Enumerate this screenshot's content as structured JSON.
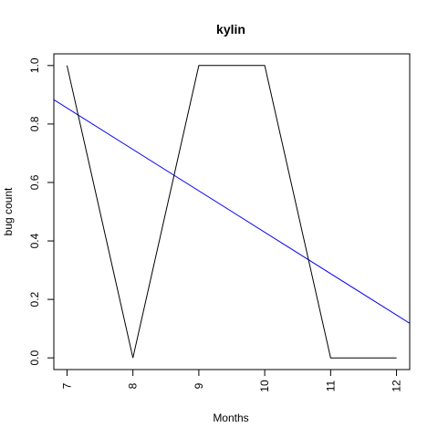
{
  "chart_data": {
    "type": "line",
    "title": "kylin",
    "xlabel": "Months",
    "ylabel": "bug count",
    "x": [
      7,
      8,
      9,
      10,
      11,
      12
    ],
    "series": [
      {
        "values": [
          1.0,
          0.0,
          1.0,
          1.0,
          0.0,
          0.0
        ],
        "color": "#000000"
      }
    ],
    "trend_line": {
      "start": [
        6.8,
        0.883
      ],
      "end": [
        12.2,
        0.118
      ],
      "color": "#0000ff"
    },
    "x_ticks": [
      "7",
      "8",
      "9",
      "10",
      "11",
      "12"
    ],
    "y_ticks": [
      "0.0",
      "0.2",
      "0.4",
      "0.6",
      "0.8",
      "1.0"
    ],
    "xlim": [
      6.8,
      12.2
    ],
    "ylim": [
      -0.04,
      1.04
    ],
    "grid": false,
    "legend": "none"
  }
}
